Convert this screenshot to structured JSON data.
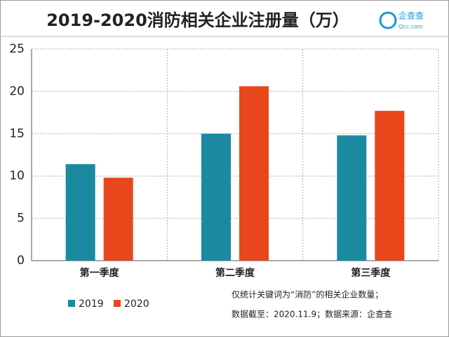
{
  "chart_data": {
    "type": "bar",
    "title": "2019-2020消防相关企业注册量（万）",
    "categories": [
      "第一季度",
      "第二季度",
      "第三季度"
    ],
    "series": [
      {
        "name": "2019",
        "color": "#1b8aa1",
        "values": [
          11.4,
          15.0,
          14.8
        ]
      },
      {
        "name": "2020",
        "color": "#e8461b",
        "values": [
          9.8,
          20.6,
          17.7
        ]
      }
    ],
    "ylim": [
      0,
      25
    ],
    "yticks": [
      0,
      5,
      10,
      15,
      20,
      25
    ],
    "grid": true,
    "notes": [
      "仅统计关键词为“消防”的相关企业数量；",
      "数据截至：2020.11.9；数据来源：企查查"
    ],
    "logo": {
      "name": "企查查",
      "url": "Qcc.com"
    }
  }
}
